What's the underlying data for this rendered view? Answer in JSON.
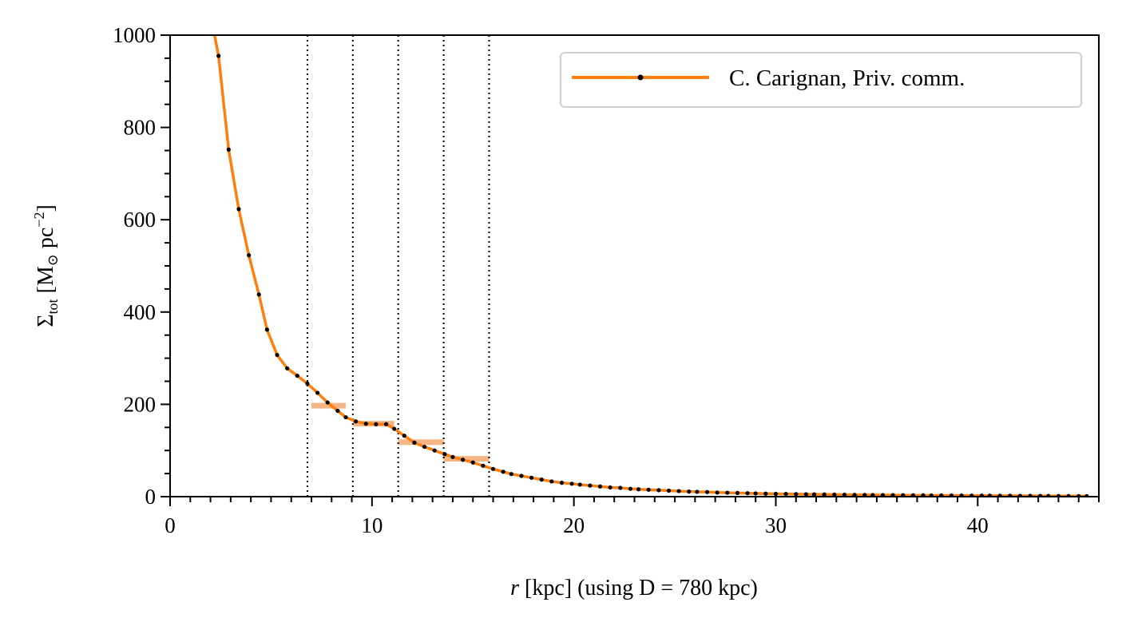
{
  "chart_data": {
    "type": "line",
    "xlabel_var": "r",
    "xlabel_rest": " [kpc] (using D = 780 kpc)",
    "ylabel": "Σ",
    "ylabel_sub": "tot",
    "ylabel_unit_open": " [M",
    "ylabel_sun": "⊙",
    "ylabel_unit_mid": " pc",
    "ylabel_sup": "−2",
    "ylabel_close": "]",
    "xlim": [
      0,
      46
    ],
    "ylim": [
      0,
      1000
    ],
    "xticks": [
      0,
      10,
      20,
      30,
      40
    ],
    "yticks": [
      0,
      200,
      400,
      600,
      800,
      1000
    ],
    "x_minor_step": 1,
    "y_minor_step": 50,
    "legend_position": "top-right",
    "colors": {
      "line": "#ff7f0e",
      "points": "#000000",
      "band_fill": "#f5b584"
    },
    "series": [
      {
        "name": "C. Carignan, Priv. comm.",
        "x": [
          2.2,
          2.4,
          2.9,
          3.4,
          3.9,
          4.4,
          4.8,
          5.3,
          5.8,
          6.3,
          6.8,
          7.3,
          7.8,
          8.3,
          8.7,
          9.2,
          9.7,
          10.2,
          10.7,
          11.1,
          11.6,
          12.1,
          12.6,
          13.1,
          13.6,
          14.0,
          14.5,
          15.0,
          15.5,
          16.0,
          16.5,
          16.9,
          17.4,
          17.9,
          18.4,
          18.9,
          19.4,
          19.9,
          20.3,
          20.8,
          21.3,
          21.8,
          22.3,
          22.8,
          23.2,
          23.7,
          24.2,
          24.7,
          25.2,
          25.7,
          26.1,
          26.6,
          27.1,
          27.6,
          28.1,
          28.6,
          29.0,
          29.5,
          30.0,
          30.5,
          31.0,
          31.5,
          31.9,
          32.4,
          32.9,
          33.4,
          33.9,
          34.4,
          34.8,
          35.3,
          35.8,
          36.3,
          36.8,
          37.3,
          37.7,
          38.2,
          38.7,
          39.2,
          39.7,
          40.2,
          40.6,
          41.1,
          41.6,
          42.1,
          42.6,
          43.1,
          43.5,
          44.0,
          44.5,
          45.0,
          45.4
        ],
        "y": [
          1000,
          955,
          752,
          623,
          523,
          438,
          362,
          307,
          278,
          262,
          245,
          225,
          204,
          186,
          172,
          163,
          158,
          157,
          157,
          147,
          132,
          117,
          108,
          100,
          92,
          86,
          80,
          74,
          67,
          60,
          54,
          49,
          45,
          41,
          37,
          33,
          30,
          28,
          26,
          24,
          22,
          20,
          19,
          17,
          16,
          15,
          14,
          13,
          12,
          11,
          10.5,
          10,
          9,
          8.5,
          8,
          7.5,
          7,
          6.5,
          6,
          5.8,
          5.5,
          5.2,
          5,
          4.7,
          4.5,
          4.2,
          4,
          3.8,
          3.6,
          3.4,
          3.2,
          3,
          2.9,
          2.8,
          2.7,
          2.6,
          2.5,
          2.4,
          2.3,
          2.2,
          2.1,
          2,
          1.9,
          1.8,
          1.7,
          1.6,
          1.5,
          1.4,
          1.3,
          1.2,
          1.1
        ]
      }
    ],
    "vertical_lines": [
      6.8,
      9.05,
      11.3,
      13.55,
      15.8
    ],
    "bands": [
      {
        "x0": 7.0,
        "x1": 8.7,
        "y": 197
      },
      {
        "x0": 9.05,
        "x1": 11.1,
        "y": 158
      },
      {
        "x0": 11.3,
        "x1": 13.55,
        "y": 118
      },
      {
        "x0": 13.55,
        "x1": 15.8,
        "y": 82
      }
    ]
  }
}
